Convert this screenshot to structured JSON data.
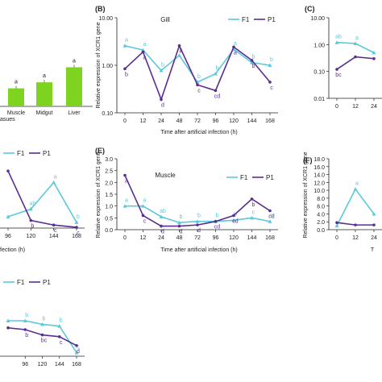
{
  "colors": {
    "f1": "#5bc8dc",
    "p1": "#5a2d91",
    "bar": "#7ed321",
    "annot_f1": "#5bc8dc",
    "annot_p1": "#5a2d91",
    "axis": "#222222"
  },
  "chart_data": [
    {
      "panel": "A",
      "type": "bar",
      "categories": [
        "Muscle",
        "Midgut",
        "Liver"
      ],
      "tick_labels": [
        "Muscle",
        "Midgut",
        "Liver"
      ],
      "values": [
        0.6,
        0.8,
        1.3
      ],
      "letters": [
        "a",
        "a",
        "a"
      ],
      "xlabel": "asues",
      "ylim": [
        0,
        3
      ]
    },
    {
      "panel": "B",
      "panel_label": "(B)",
      "type": "line",
      "title": "Gill",
      "ylabel": "Relative expression of XCR1 gene",
      "xlabel": "Time after artificial infection (h)",
      "tick_labels": [
        "0",
        "12",
        "24",
        "48",
        "72",
        "96",
        "120",
        "144",
        "168"
      ],
      "y_ticks": [
        "10.00",
        "1.00",
        "0.10"
      ],
      "y_scale": "log",
      "ylim": [
        0.004,
        10
      ],
      "x": [
        0,
        12,
        24,
        48,
        72,
        96,
        120,
        144,
        168
      ],
      "series": [
        {
          "name": "F1",
          "values": [
            1.0,
            0.7,
            0.13,
            0.45,
            0.05,
            0.1,
            0.75,
            0.25,
            0.2
          ],
          "letters": [
            "a",
            "a",
            "b",
            "b",
            "b",
            "b",
            "a",
            "b",
            "b"
          ]
        },
        {
          "name": "P1",
          "values": [
            0.15,
            0.6,
            0.012,
            1.0,
            0.04,
            0.025,
            0.9,
            0.3,
            0.05
          ],
          "letters": [
            "b",
            "a",
            "d",
            "a",
            "c",
            "cd",
            "a",
            "b",
            "c"
          ]
        }
      ],
      "legend": "top-right"
    },
    {
      "panel": "C",
      "panel_label": "(C)",
      "type": "line",
      "tick_labels": [
        "0",
        "12",
        "24"
      ],
      "y_ticks": [
        "10.00",
        "1.00",
        "0.10",
        "0.01"
      ],
      "y_scale": "log",
      "x": [
        0,
        12,
        24
      ],
      "series": [
        {
          "name": "F1",
          "values": [
            1.2,
            1.1,
            0.5
          ],
          "letters": [
            "ab",
            "a",
            ""
          ]
        },
        {
          "name": "P1",
          "values": [
            0.12,
            0.35,
            0.3
          ],
          "letters": [
            "bc",
            "",
            ""
          ]
        }
      ]
    },
    {
      "panel": "D",
      "type": "line",
      "xlabel": "fection (h)",
      "tick_labels": [
        "96",
        "120",
        "144",
        "168"
      ],
      "x": [
        96,
        120,
        144,
        168
      ],
      "series": [
        {
          "name": "F1",
          "values": [
            0.3,
            0.5,
            1.2,
            0.15
          ],
          "letters": [
            "",
            "ab",
            "a",
            "b"
          ]
        },
        {
          "name": "P1",
          "values": [
            1.5,
            0.2,
            0.08,
            0.02
          ],
          "letters": [
            "",
            "b",
            "c",
            "c"
          ]
        }
      ],
      "legend": "top"
    },
    {
      "panel": "E",
      "panel_label": "(E)",
      "type": "line",
      "title": "Muscle",
      "ylabel": "Relative expression of XCR1 gene",
      "xlabel": "Time after artificial infection (h)",
      "tick_labels": [
        "0",
        "12",
        "24",
        "48",
        "72",
        "96",
        "120",
        "144",
        "168"
      ],
      "y_ticks": [
        "3.0",
        "2.5",
        "2.0",
        "1.5",
        "1.0",
        "0.5",
        "0.0"
      ],
      "ylim": [
        0,
        3
      ],
      "x": [
        0,
        12,
        24,
        48,
        72,
        96,
        120,
        144,
        168
      ],
      "series": [
        {
          "name": "F1",
          "values": [
            1.0,
            1.0,
            0.55,
            0.3,
            0.35,
            0.35,
            0.4,
            0.5,
            0.35
          ],
          "letters": [
            "a",
            "a",
            "ab",
            "b",
            "b",
            "b",
            "b",
            "c",
            "c"
          ]
        },
        {
          "name": "P1",
          "values": [
            2.3,
            0.6,
            0.15,
            0.15,
            0.2,
            0.35,
            0.6,
            1.3,
            0.8
          ],
          "letters": [
            "a",
            "c",
            "d",
            "d",
            "d",
            "cd",
            "cd",
            "b",
            "cd"
          ]
        }
      ],
      "legend": "top-right"
    },
    {
      "panel": "F",
      "panel_label": "(F)",
      "type": "line",
      "ylabel": "Relative expression of XCR1 gene",
      "xlabel": "T",
      "tick_labels": [
        "0",
        "12",
        "24"
      ],
      "y_ticks": [
        "18.0",
        "16.0",
        "14.0",
        "12.0",
        "10.0",
        "8.0",
        "6.0",
        "4.0",
        "2.0",
        "0.0"
      ],
      "ylim": [
        0,
        18
      ],
      "x": [
        0,
        12,
        24
      ],
      "series": [
        {
          "name": "F1",
          "values": [
            1.0,
            10.3,
            4.0
          ],
          "letters": [
            "",
            "a",
            ""
          ]
        },
        {
          "name": "P1",
          "values": [
            1.8,
            1.2,
            1.2
          ],
          "letters": [
            "",
            "",
            ""
          ]
        }
      ]
    },
    {
      "panel": "G",
      "type": "line",
      "tick_labels": [
        "96",
        "120",
        "144",
        "168"
      ],
      "x": [
        72,
        96,
        120,
        144,
        168
      ],
      "series": [
        {
          "name": "F1",
          "values": [
            1.0,
            1.0,
            0.9,
            0.85,
            0.1
          ],
          "letters": [
            "",
            "b",
            "b",
            "b",
            "c"
          ]
        },
        {
          "name": "P1",
          "values": [
            0.8,
            0.75,
            0.6,
            0.55,
            0.3
          ],
          "letters": [
            "",
            "b",
            "bc",
            "c",
            "d"
          ]
        }
      ],
      "legend": "top"
    }
  ]
}
